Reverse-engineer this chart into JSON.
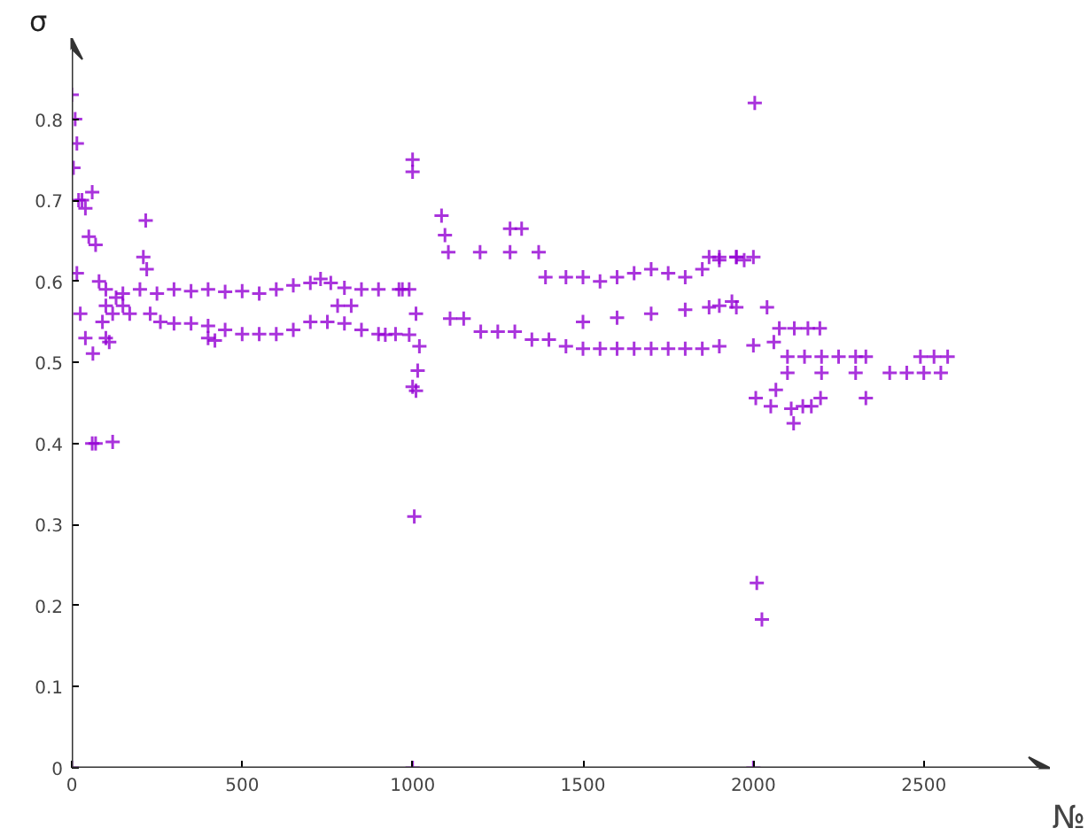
{
  "chart_data": {
    "type": "scatter",
    "xlabel": "№",
    "ylabel": "σ",
    "marker": "cross",
    "grid": false,
    "xlim": [
      0,
      2870
    ],
    "ylim": [
      0,
      0.9
    ],
    "xticks": [
      0,
      500,
      1000,
      1500,
      2000,
      2500
    ],
    "yticks": [
      0,
      0.1,
      0.2,
      0.3,
      0.4,
      0.5,
      0.6,
      0.7,
      0.8
    ],
    "series": [
      {
        "color": "#9400d3",
        "x": [
          0,
          0,
          5,
          10,
          15,
          20,
          30,
          40,
          50,
          60,
          70,
          80,
          15,
          25,
          40,
          62,
          60,
          70,
          120,
          90,
          100,
          120,
          130,
          150,
          170,
          100,
          110,
          217,
          210,
          220,
          100,
          150,
          200,
          250,
          300,
          350,
          400,
          450,
          500,
          550,
          600,
          650,
          700,
          730,
          760,
          800,
          850,
          900,
          230,
          260,
          300,
          350,
          400,
          450,
          500,
          550,
          600,
          650,
          700,
          750,
          800,
          850,
          900,
          950,
          400,
          420,
          780,
          820,
          960,
          970,
          990,
          920,
          990,
          1000,
          1000,
          1005,
          1000,
          1000,
          1010,
          1015,
          1020,
          1010,
          1085,
          1095,
          1105,
          1198,
          1286,
          1286,
          1320,
          1370,
          1110,
          1150,
          1200,
          1250,
          1300,
          1350,
          1400,
          1390,
          1450,
          1500,
          1550,
          1600,
          1650,
          1700,
          1750,
          1800,
          1850,
          1900,
          1950,
          1973,
          1450,
          1500,
          1550,
          1600,
          1650,
          1700,
          1750,
          1800,
          1850,
          1900,
          1500,
          1600,
          1700,
          1800,
          1900,
          1937,
          1870,
          1900,
          1950,
          2000,
          1870,
          1950,
          2040,
          2000,
          2060,
          2076,
          2120,
          2160,
          2195,
          2100,
          2150,
          2200,
          2250,
          2300,
          2330,
          2100,
          2200,
          2300,
          2400,
          2450,
          2500,
          2550,
          2490,
          2530,
          2570,
          2330,
          2007,
          2051,
          2111,
          2118,
          2145,
          2170,
          2197,
          2066,
          2000,
          2010,
          2025,
          2004
        ],
        "values": [
          0,
          0.83,
          0.74,
          0.8,
          0.77,
          0.7,
          0.7,
          0.69,
          0.655,
          0.71,
          0.645,
          0.6,
          0.61,
          0.56,
          0.53,
          0.511,
          0.4,
          0.4,
          0.402,
          0.55,
          0.57,
          0.56,
          0.58,
          0.57,
          0.56,
          0.53,
          0.525,
          0.675,
          0.63,
          0.615,
          0.59,
          0.585,
          0.59,
          0.585,
          0.59,
          0.588,
          0.59,
          0.587,
          0.588,
          0.585,
          0.59,
          0.595,
          0.598,
          0.603,
          0.598,
          0.592,
          0.59,
          0.59,
          0.56,
          0.55,
          0.548,
          0.548,
          0.545,
          0.54,
          0.535,
          0.535,
          0.535,
          0.54,
          0.55,
          0.55,
          0.548,
          0.54,
          0.535,
          0.535,
          0.53,
          0.527,
          0.57,
          0.57,
          0.59,
          0.59,
          0.59,
          0.534,
          0.534,
          0.75,
          0.735,
          0.31,
          0,
          0.47,
          0.465,
          0.49,
          0.52,
          0.56,
          0.681,
          0.657,
          0.636,
          0.636,
          0.665,
          0.636,
          0.665,
          0.636,
          0.554,
          0.554,
          0.538,
          0.538,
          0.538,
          0.528,
          0.528,
          0.605,
          0.605,
          0.605,
          0.6,
          0.605,
          0.61,
          0.615,
          0.61,
          0.605,
          0.615,
          0.626,
          0.63,
          0.626,
          0.52,
          0.517,
          0.517,
          0.517,
          0.517,
          0.517,
          0.517,
          0.517,
          0.517,
          0.52,
          0.55,
          0.555,
          0.56,
          0.565,
          0.57,
          0.575,
          0.63,
          0.63,
          0.63,
          0.63,
          0.568,
          0.568,
          0.568,
          0.521,
          0.525,
          0.542,
          0.542,
          0.542,
          0.542,
          0.507,
          0.507,
          0.507,
          0.507,
          0.507,
          0.507,
          0.487,
          0.487,
          0.487,
          0.487,
          0.487,
          0.487,
          0.487,
          0.507,
          0.507,
          0.507,
          0.456,
          0.456,
          0.446,
          0.443,
          0.425,
          0.446,
          0.446,
          0.456,
          0.466,
          0,
          0.228,
          0.183,
          0.82
        ]
      }
    ]
  }
}
